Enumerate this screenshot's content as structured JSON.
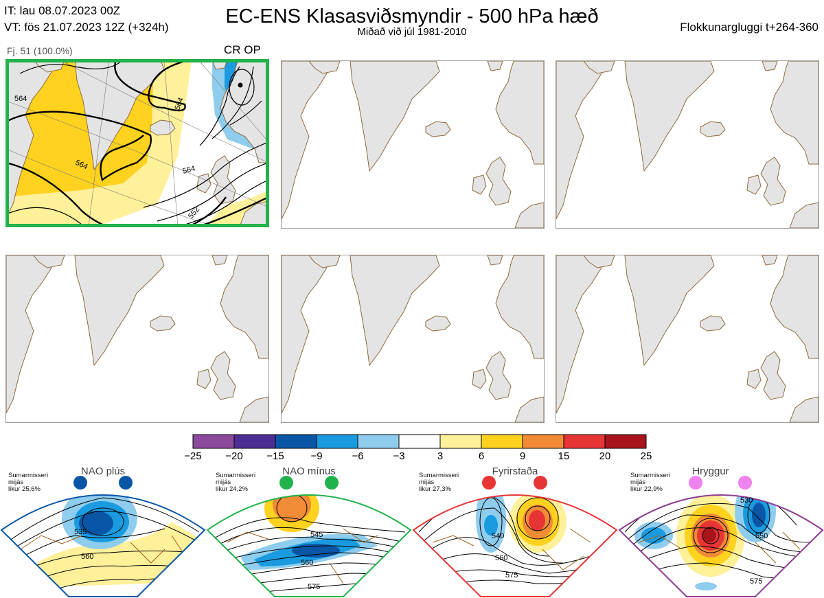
{
  "header": {
    "init_time": "IT: lau 08.07.2023 00Z",
    "valid_time": "VT: fös 21.07.2023 12Z  (+324h)",
    "title": "EC-ENS Klasasviðsmyndir - 500 hPa hæð",
    "subtitle": "Miðað við júl 1981-2010",
    "window": "Flokkunargluggi t+264-360"
  },
  "cluster": {
    "members": "Fj. 51 (100.0%)",
    "label": "CR OP",
    "highlight_color": "#22b24c",
    "contour_labels": [
      "564",
      "564",
      "564",
      "552",
      "564"
    ]
  },
  "colorbar": {
    "ticks": [
      "−25",
      "−20",
      "−15",
      "−9",
      "−6",
      "−3",
      "3",
      "6",
      "9",
      "15",
      "20",
      "25"
    ],
    "colors": [
      "#8b4a9e",
      "#4b2d94",
      "#0a56a6",
      "#1a9be0",
      "#8fcdee",
      "#ffffff",
      "#fff09a",
      "#ffd21f",
      "#f18b36",
      "#e73536",
      "#a8141c"
    ]
  },
  "regimes": [
    {
      "name": "NAO plús",
      "info": [
        "Sumarmisseri",
        "mijás",
        "likur 25,6%"
      ],
      "color": "#0a56a6",
      "labels": [
        "535",
        "560"
      ]
    },
    {
      "name": "NAO mínus",
      "info": [
        "Sumarmisseri",
        "mijás",
        "likur 24,2%"
      ],
      "color": "#22b24c",
      "labels": [
        "545",
        "560",
        "575"
      ]
    },
    {
      "name": "Fyrirstaða",
      "info": [
        "Sumarmisseri",
        "mijás",
        "likur 27,3%"
      ],
      "color": "#e73536",
      "labels": [
        "540",
        "560",
        "575"
      ]
    },
    {
      "name": "Hryggur",
      "info": [
        "Sumarmisseri",
        "mijás",
        "likur 22,9%"
      ],
      "color": "#8e3c92",
      "labels": [
        "530",
        "550",
        "575"
      ]
    }
  ]
}
